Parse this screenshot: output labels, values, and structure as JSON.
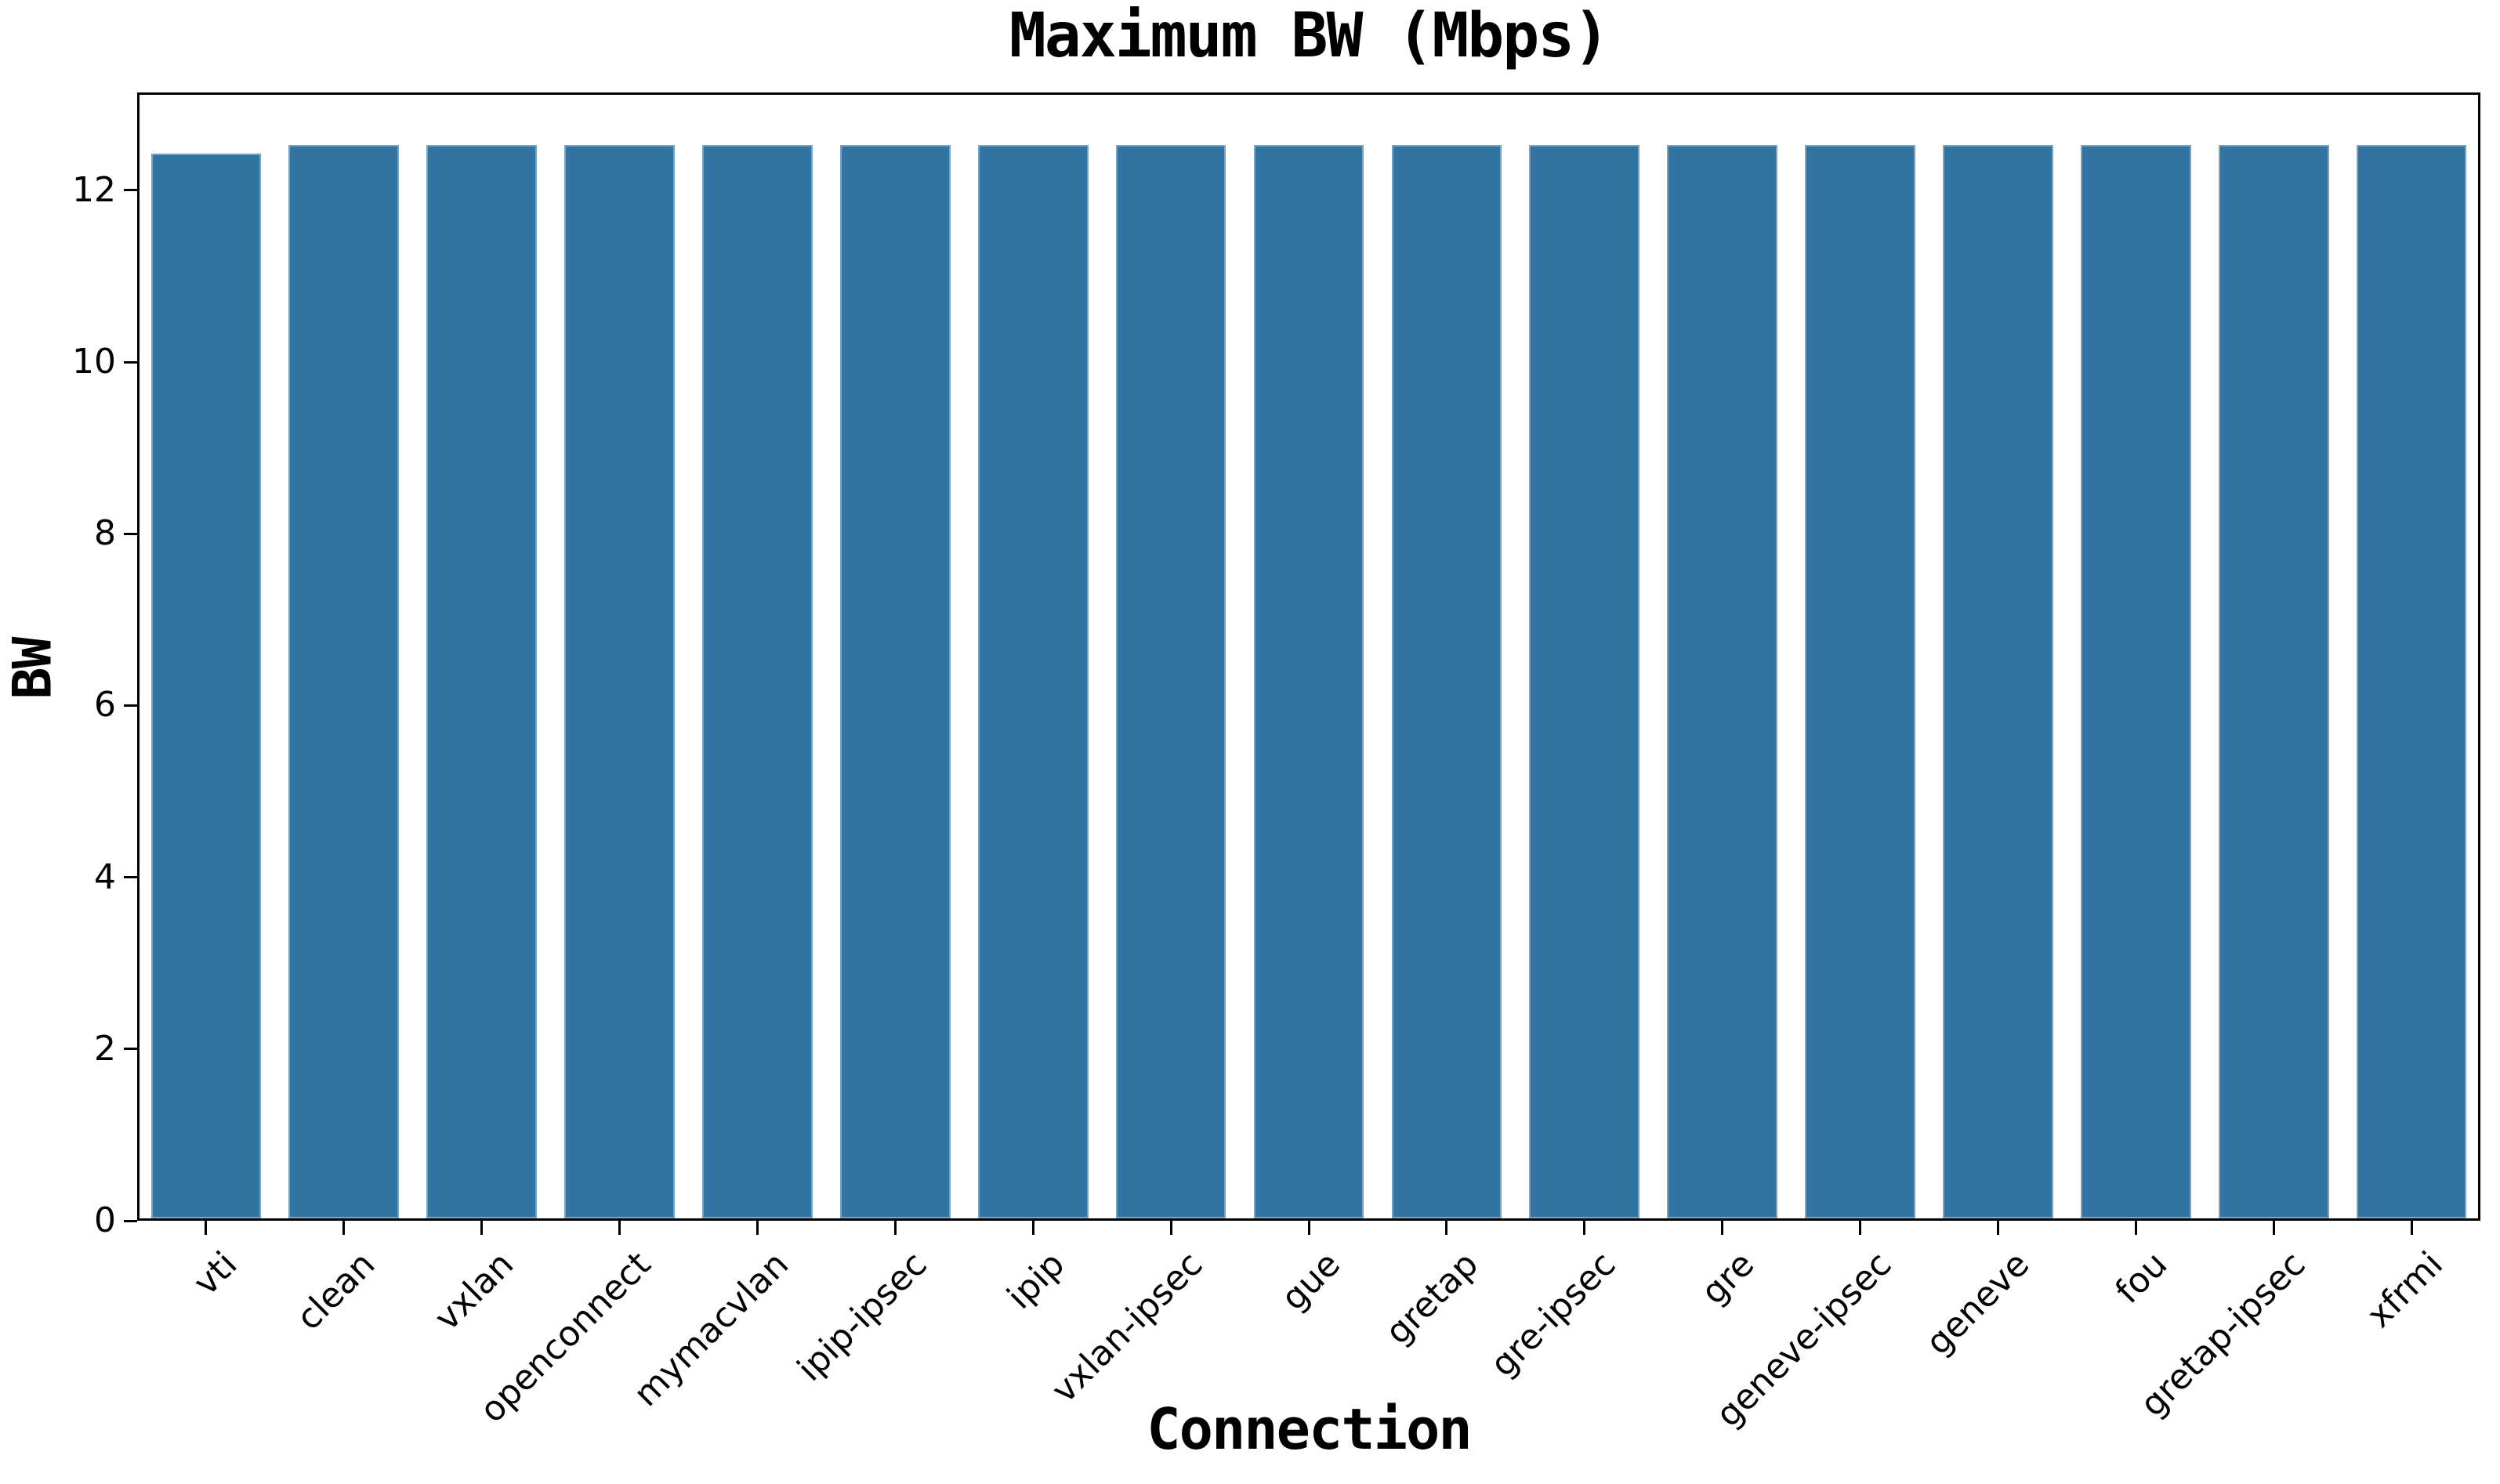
{
  "chart_data": {
    "type": "bar",
    "title": "Maximum BW (Mbps)",
    "xlabel": "Connection",
    "ylabel": "BW",
    "categories": [
      "vti",
      "clean",
      "vxlan",
      "openconnect",
      "mymacvlan",
      "ipip-ipsec",
      "ipip",
      "vxlan-ipsec",
      "gue",
      "gretap",
      "gre-ipsec",
      "gre",
      "geneve-ipsec",
      "geneve",
      "fou",
      "gretap-ipsec",
      "xfrmi"
    ],
    "values": [
      12.4,
      12.5,
      12.5,
      12.5,
      12.5,
      12.5,
      12.5,
      12.5,
      12.5,
      12.5,
      12.5,
      12.5,
      12.5,
      12.5,
      12.5,
      12.5,
      12.5
    ],
    "yticks": [
      0,
      2,
      4,
      6,
      8,
      10,
      12
    ],
    "ylim": [
      0,
      13.14
    ],
    "grid": false,
    "legend": "none",
    "bar_color": "#3274a1",
    "axis_color": "#000000",
    "background_color": "#ffffff"
  }
}
